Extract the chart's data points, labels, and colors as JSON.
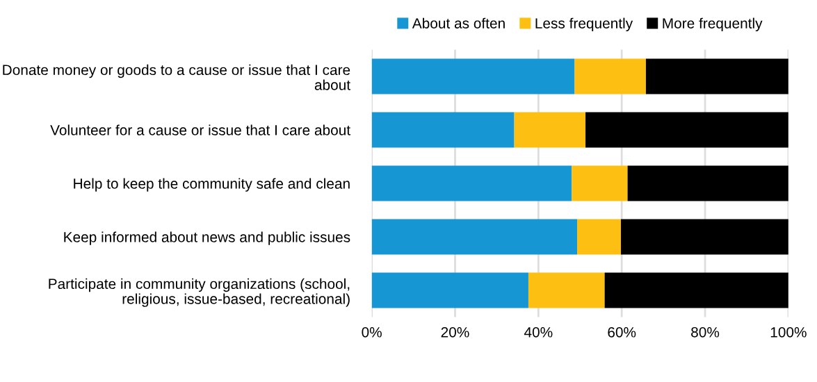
{
  "chart_data": {
    "type": "bar",
    "orientation": "horizontal",
    "stacked": true,
    "categories": [
      "Donate money or goods to a cause or issue that I care about",
      "Volunteer for a cause or issue that I care about",
      "Help to keep the community safe and clean",
      "Keep informed about news and public issues",
      "Participate in community organizations (school, religious, issue-based, recreational)"
    ],
    "series": [
      {
        "name": "About as often",
        "color": "#1696d2",
        "values": [
          48.7,
          34.2,
          48.0,
          49.3,
          37.6
        ]
      },
      {
        "name": "Less frequently",
        "color": "#fdbf11",
        "values": [
          17.1,
          17.1,
          13.4,
          10.5,
          18.3
        ]
      },
      {
        "name": "More frequently",
        "color": "#000000",
        "values": [
          34.2,
          48.7,
          38.6,
          40.2,
          44.1
        ]
      }
    ],
    "xlim": [
      0,
      100
    ],
    "xticks": [
      {
        "value": 0,
        "label": "0%"
      },
      {
        "value": 20,
        "label": "20%"
      },
      {
        "value": 40,
        "label": "40%"
      },
      {
        "value": 60,
        "label": "60%"
      },
      {
        "value": 80,
        "label": "80%"
      },
      {
        "value": 100,
        "label": "100%"
      }
    ],
    "grid": "x",
    "legend": "top"
  }
}
